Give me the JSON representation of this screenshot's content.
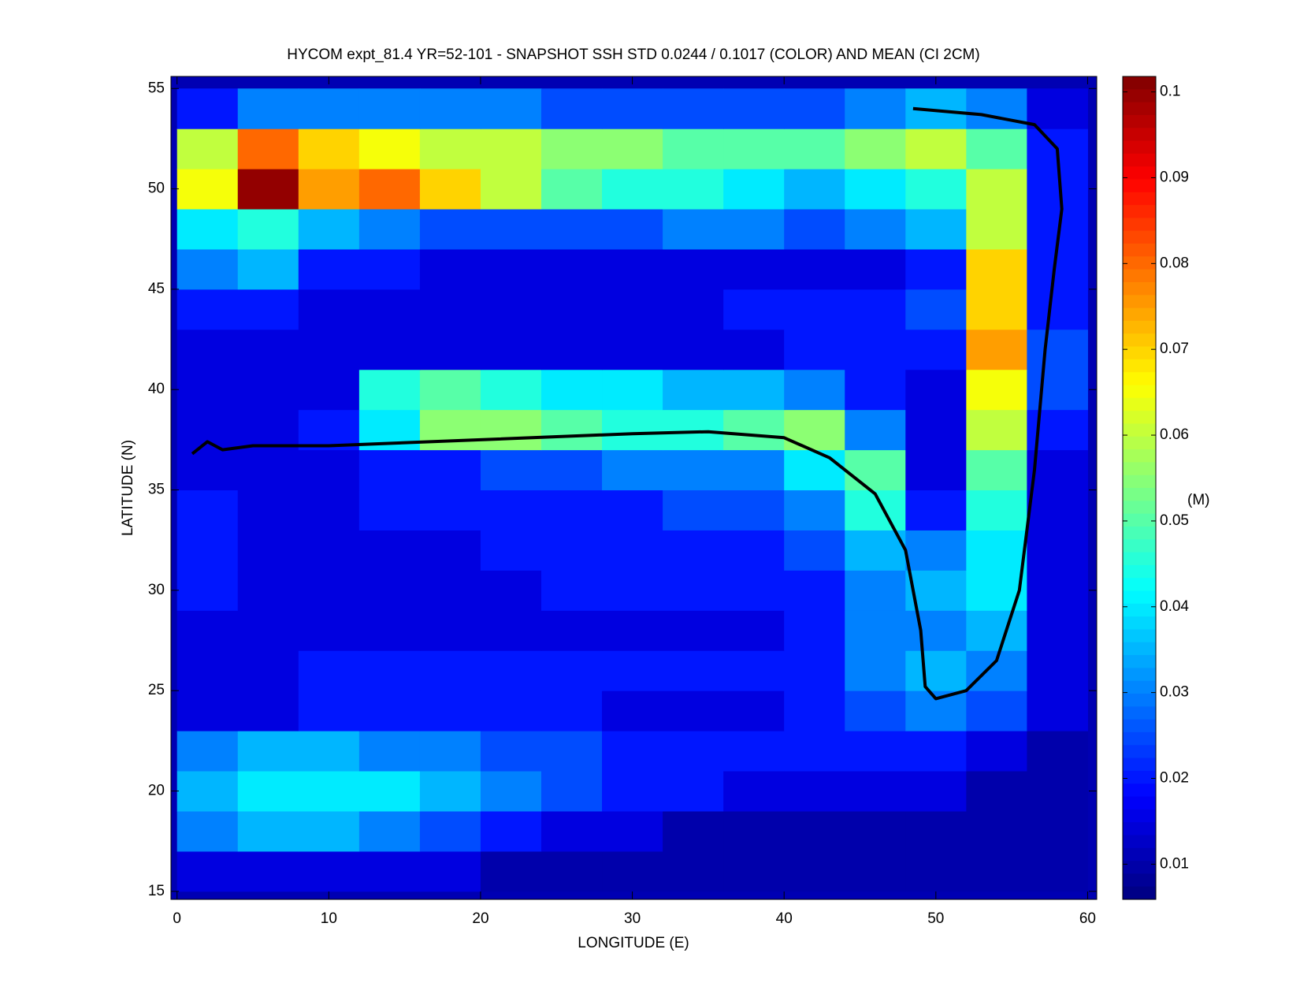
{
  "chart_data": {
    "type": "heatmap",
    "title": "HYCOM expt_81.4 YR=52-101 - SNAPSHOT SSH STD 0.0244 / 0.1017 (COLOR) AND MEAN (CI 2CM)",
    "xlabel": "LONGITUDE (E)",
    "ylabel": "LATITUDE (N)",
    "colorbar_label": "(M)",
    "colormap": "jet",
    "xlim": [
      -0.4,
      60.6
    ],
    "ylim": [
      14.6,
      55.6
    ],
    "xticks": [
      0,
      10,
      20,
      30,
      40,
      50,
      60
    ],
    "yticks": [
      15,
      20,
      25,
      30,
      35,
      40,
      45,
      50,
      55
    ],
    "clim": [
      0.0059,
      0.1018
    ],
    "cticks": [
      0.01,
      0.02,
      0.03,
      0.04,
      0.05,
      0.06,
      0.07,
      0.08,
      0.09,
      0.1
    ],
    "x": [
      2,
      6,
      10,
      14,
      18,
      22,
      26,
      30,
      34,
      38,
      42,
      46,
      50,
      54,
      58
    ],
    "y": [
      16,
      18,
      20,
      22,
      24,
      26,
      28,
      30,
      32,
      34,
      36,
      38,
      40,
      42,
      44,
      46,
      48,
      50,
      52,
      54
    ],
    "z": [
      [
        0.015,
        0.015,
        0.015,
        0.015,
        0.015,
        0.01,
        0.01,
        0.01,
        0.01,
        0.01,
        0.01,
        0.01,
        0.01,
        0.01,
        0.01
      ],
      [
        0.03,
        0.035,
        0.035,
        0.03,
        0.025,
        0.02,
        0.015,
        0.015,
        0.01,
        0.01,
        0.01,
        0.01,
        0.01,
        0.01,
        0.01
      ],
      [
        0.035,
        0.04,
        0.04,
        0.04,
        0.035,
        0.03,
        0.025,
        0.02,
        0.02,
        0.015,
        0.015,
        0.015,
        0.015,
        0.01,
        0.01
      ],
      [
        0.03,
        0.035,
        0.035,
        0.03,
        0.03,
        0.025,
        0.025,
        0.02,
        0.02,
        0.02,
        0.02,
        0.02,
        0.02,
        0.015,
        0.01
      ],
      [
        0.015,
        0.015,
        0.02,
        0.02,
        0.02,
        0.02,
        0.02,
        0.015,
        0.015,
        0.015,
        0.02,
        0.025,
        0.03,
        0.025,
        0.015
      ],
      [
        0.015,
        0.015,
        0.02,
        0.02,
        0.02,
        0.02,
        0.02,
        0.02,
        0.02,
        0.02,
        0.02,
        0.03,
        0.035,
        0.03,
        0.015
      ],
      [
        0.015,
        0.015,
        0.015,
        0.015,
        0.015,
        0.015,
        0.015,
        0.015,
        0.015,
        0.015,
        0.02,
        0.03,
        0.03,
        0.035,
        0.015
      ],
      [
        0.02,
        0.015,
        0.015,
        0.015,
        0.015,
        0.015,
        0.02,
        0.02,
        0.02,
        0.02,
        0.02,
        0.03,
        0.035,
        0.04,
        0.015
      ],
      [
        0.02,
        0.015,
        0.015,
        0.015,
        0.015,
        0.02,
        0.02,
        0.02,
        0.02,
        0.02,
        0.025,
        0.035,
        0.03,
        0.04,
        0.015
      ],
      [
        0.02,
        0.015,
        0.015,
        0.02,
        0.02,
        0.02,
        0.02,
        0.02,
        0.025,
        0.025,
        0.03,
        0.045,
        0.02,
        0.045,
        0.015
      ],
      [
        0.015,
        0.015,
        0.015,
        0.02,
        0.02,
        0.025,
        0.025,
        0.03,
        0.03,
        0.03,
        0.04,
        0.05,
        0.015,
        0.05,
        0.015
      ],
      [
        0.015,
        0.015,
        0.02,
        0.04,
        0.055,
        0.055,
        0.05,
        0.045,
        0.045,
        0.05,
        0.055,
        0.03,
        0.015,
        0.06,
        0.02
      ],
      [
        0.015,
        0.015,
        0.015,
        0.045,
        0.05,
        0.045,
        0.04,
        0.04,
        0.035,
        0.035,
        0.03,
        0.02,
        0.015,
        0.065,
        0.025
      ],
      [
        0.015,
        0.015,
        0.015,
        0.015,
        0.015,
        0.015,
        0.015,
        0.015,
        0.015,
        0.015,
        0.02,
        0.02,
        0.02,
        0.075,
        0.025
      ],
      [
        0.02,
        0.02,
        0.015,
        0.015,
        0.015,
        0.015,
        0.015,
        0.015,
        0.015,
        0.02,
        0.02,
        0.02,
        0.025,
        0.07,
        0.02
      ],
      [
        0.03,
        0.035,
        0.02,
        0.02,
        0.015,
        0.015,
        0.015,
        0.015,
        0.015,
        0.015,
        0.015,
        0.015,
        0.02,
        0.07,
        0.02
      ],
      [
        0.04,
        0.045,
        0.035,
        0.03,
        0.025,
        0.025,
        0.025,
        0.025,
        0.03,
        0.03,
        0.025,
        0.03,
        0.035,
        0.06,
        0.02
      ],
      [
        0.065,
        0.1,
        0.075,
        0.08,
        0.07,
        0.06,
        0.05,
        0.045,
        0.045,
        0.04,
        0.035,
        0.04,
        0.045,
        0.06,
        0.02
      ],
      [
        0.06,
        0.08,
        0.07,
        0.065,
        0.06,
        0.06,
        0.055,
        0.055,
        0.05,
        0.05,
        0.05,
        0.055,
        0.06,
        0.05,
        0.02
      ],
      [
        0.02,
        0.03,
        0.03,
        0.03,
        0.03,
        0.03,
        0.025,
        0.025,
        0.025,
        0.025,
        0.025,
        0.03,
        0.035,
        0.03,
        0.015
      ]
    ],
    "series": [
      {
        "color": "#000000",
        "x": [
          1,
          2,
          3,
          5,
          10,
          20,
          30,
          35,
          40,
          43,
          46,
          48,
          49,
          49.3,
          50,
          52,
          54,
          55.5,
          56.5,
          57.2,
          57.8,
          58.3,
          58,
          56.5,
          53,
          48.5
        ],
        "values": [
          36.8,
          37.4,
          37.0,
          37.2,
          37.2,
          37.5,
          37.8,
          37.9,
          37.6,
          36.6,
          34.8,
          32,
          28,
          25.2,
          24.6,
          25,
          26.5,
          30,
          36,
          42,
          46,
          49,
          52,
          53.2,
          53.7,
          54
        ]
      }
    ]
  }
}
